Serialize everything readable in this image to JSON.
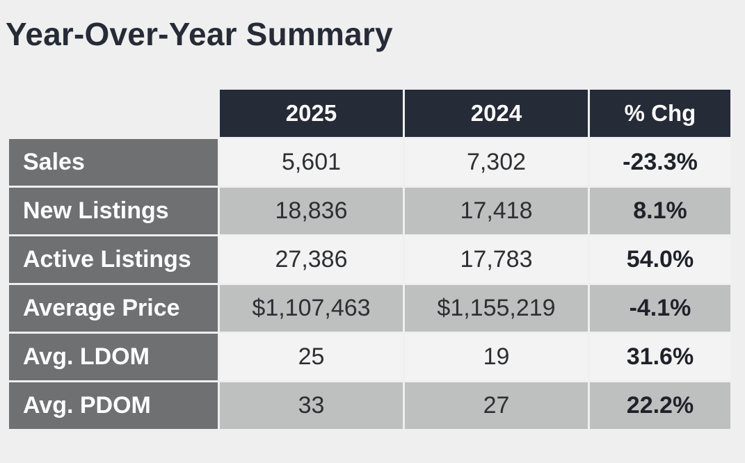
{
  "title": "Year-Over-Year Summary",
  "table": {
    "headers": [
      "",
      "2025",
      "2024",
      "% Chg"
    ],
    "rows": [
      {
        "label": "Sales",
        "v2025": "5,601",
        "v2024": "7,302",
        "chg": "-23.3%"
      },
      {
        "label": "New Listings",
        "v2025": "18,836",
        "v2024": "17,418",
        "chg": "8.1%"
      },
      {
        "label": "Active Listings",
        "v2025": "27,386",
        "v2024": "17,783",
        "chg": "54.0%"
      },
      {
        "label": "Average Price",
        "v2025": "$1,107,463",
        "v2024": "$1,155,219",
        "chg": "-4.1%"
      },
      {
        "label": "Avg. LDOM",
        "v2025": "25",
        "v2024": "19",
        "chg": "31.6%"
      },
      {
        "label": "Avg. PDOM",
        "v2025": "33",
        "v2024": "27",
        "chg": "22.2%"
      }
    ]
  },
  "colors": {
    "page_background": "#efefef",
    "header_background": "#262b38",
    "label_column_background": "#6e7072",
    "row_light": "#f3f3f3",
    "row_dark": "#bebfbf",
    "title_text": "#262b36"
  }
}
